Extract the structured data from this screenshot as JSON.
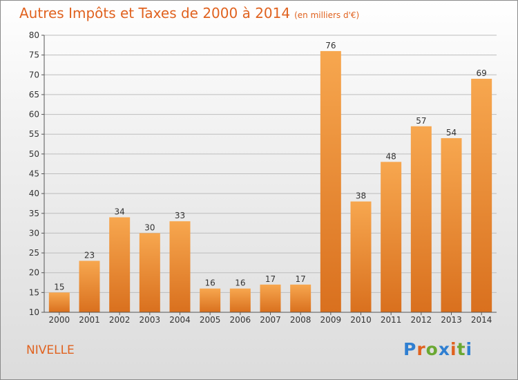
{
  "header": {
    "title": "Autres Impôts et Taxes de 2000 à 2014",
    "unit_note": "(en milliers d'€)"
  },
  "commune": "NIVELLE",
  "logo": {
    "text": "Proxiti",
    "letter_colors": [
      "#2f7fd1",
      "#e0621f",
      "#6aa832",
      "#2f7fd1",
      "#e0621f",
      "#6aa832",
      "#2f7fd1"
    ]
  },
  "colors": {
    "bar_light": "#f7a74f",
    "bar_dark": "#d9701e",
    "axis": "#555555",
    "grid": "#bdbdbd",
    "text": "#333333",
    "accent": "#e0621f"
  },
  "chart_data": {
    "type": "bar",
    "title": "Autres Impôts et Taxes de 2000 à 2014",
    "subtitle": "(en milliers d'€)",
    "categories": [
      "2000",
      "2001",
      "2002",
      "2003",
      "2004",
      "2005",
      "2006",
      "2007",
      "2008",
      "2009",
      "2010",
      "2011",
      "2012",
      "2013",
      "2014"
    ],
    "values": [
      15,
      23,
      34,
      30,
      33,
      16,
      16,
      17,
      17,
      76,
      38,
      48,
      57,
      54,
      69
    ],
    "ylim": [
      10,
      80
    ],
    "yticks": [
      10,
      15,
      20,
      25,
      30,
      35,
      40,
      45,
      50,
      55,
      60,
      65,
      70,
      75,
      80
    ],
    "xlabel": "",
    "ylabel": "",
    "grid": true
  }
}
